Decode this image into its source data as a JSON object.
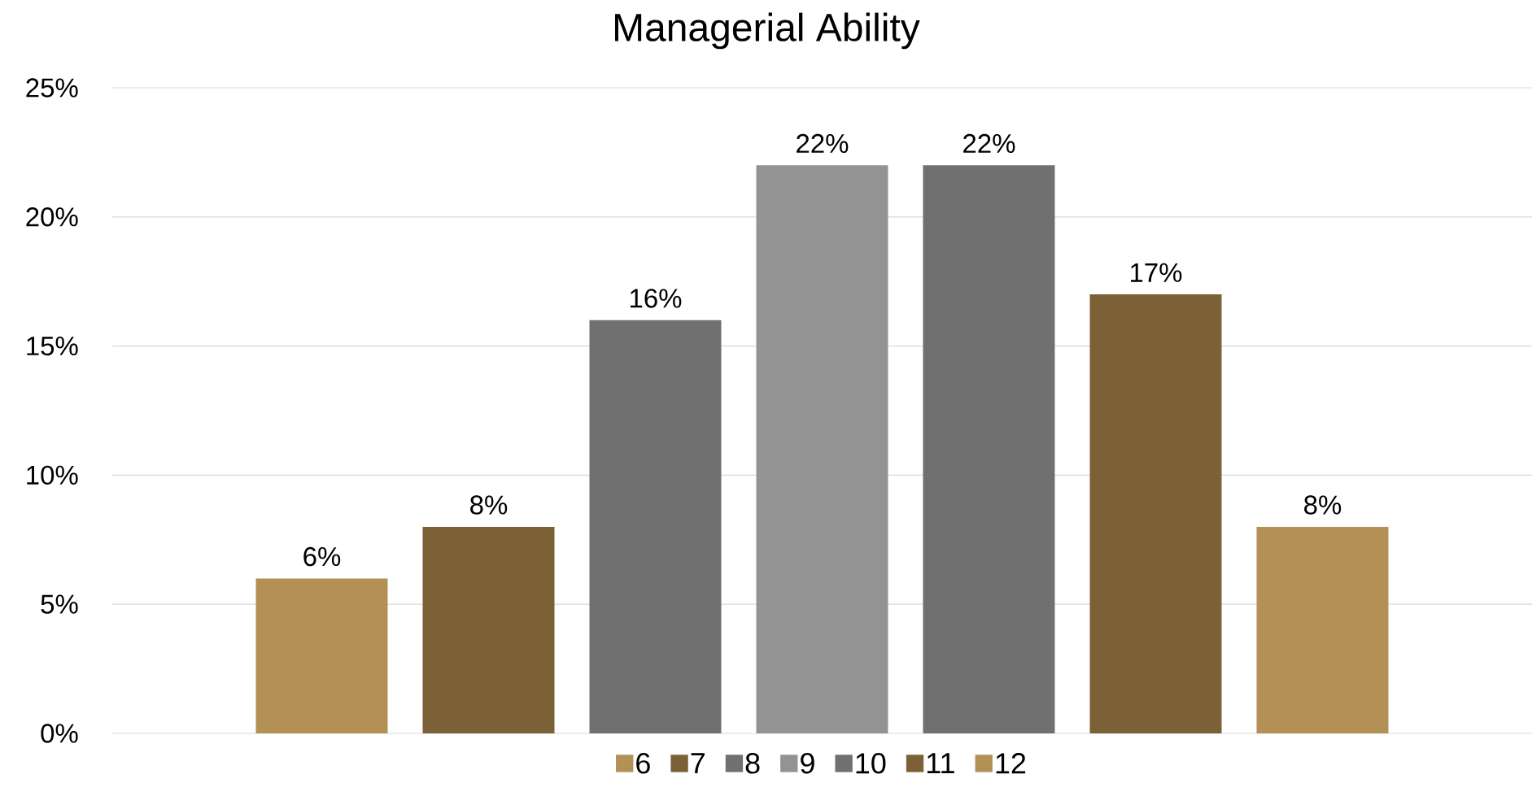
{
  "chart_data": {
    "type": "bar",
    "title": "Managerial Ability",
    "categories": [
      null
    ],
    "series": [
      {
        "name": "6",
        "color": "#b39055",
        "values": [
          6
        ],
        "value_labels": [
          "6%"
        ]
      },
      {
        "name": "7",
        "color": "#7d6136",
        "values": [
          8
        ],
        "value_labels": [
          "8%"
        ]
      },
      {
        "name": "8",
        "color": "#707070",
        "values": [
          16
        ],
        "value_labels": [
          "16%"
        ]
      },
      {
        "name": "9",
        "color": "#939393",
        "values": [
          22
        ],
        "value_labels": [
          "22%"
        ]
      },
      {
        "name": "10",
        "color": "#707070",
        "values": [
          22
        ],
        "value_labels": [
          "22%"
        ]
      },
      {
        "name": "11",
        "color": "#7d6136",
        "values": [
          17
        ],
        "value_labels": [
          "17%"
        ]
      },
      {
        "name": "12",
        "color": "#b39055",
        "values": [
          8
        ],
        "value_labels": [
          "8%"
        ]
      }
    ],
    "ylim": [
      0,
      25
    ],
    "yticks": [
      {
        "value": 0,
        "label": "0%"
      },
      {
        "value": 5,
        "label": "5%"
      },
      {
        "value": 10,
        "label": "10%"
      },
      {
        "value": 15,
        "label": "15%"
      },
      {
        "value": 20,
        "label": "20%"
      },
      {
        "value": 25,
        "label": "25%"
      }
    ],
    "grid": "y",
    "legend": "bottom"
  }
}
